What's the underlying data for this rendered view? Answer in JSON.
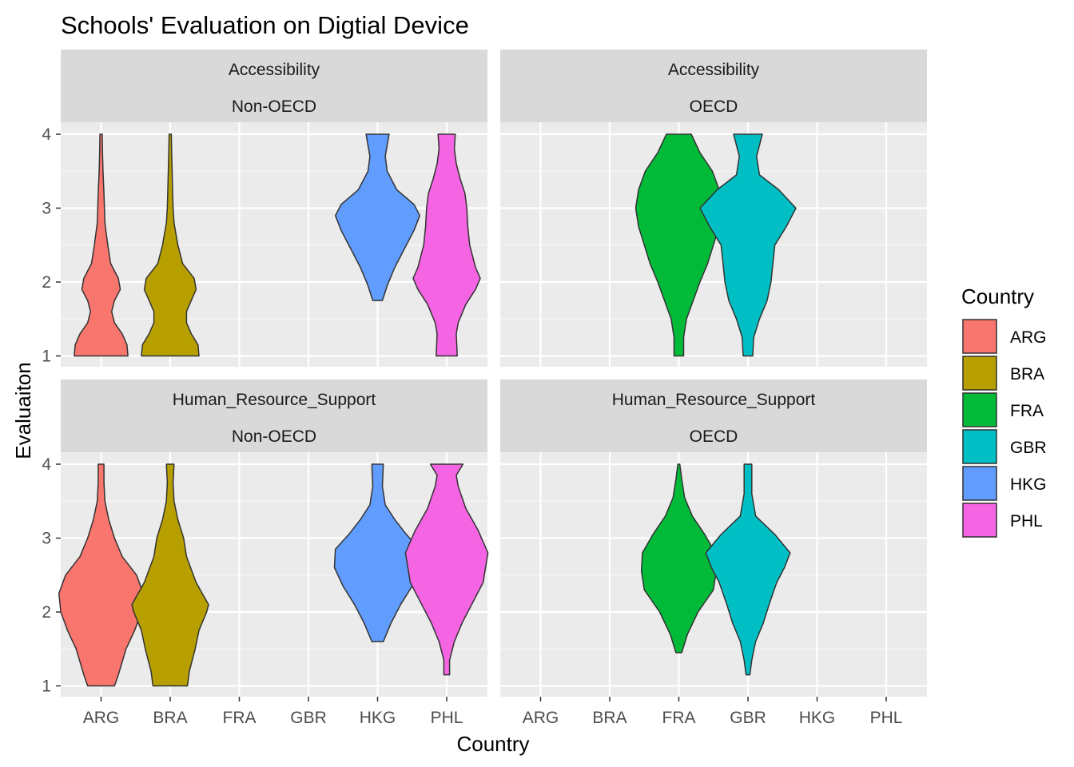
{
  "chart_data": {
    "type": "violin",
    "title": "Schools' Evaluation on Digtial Device",
    "xlabel": "Country",
    "ylabel": "Evaluaiton",
    "categories": [
      "ARG",
      "BRA",
      "FRA",
      "GBR",
      "HKG",
      "PHL"
    ],
    "y_ticks": [
      1,
      2,
      3,
      4
    ],
    "ylim": [
      0.75,
      4.25
    ],
    "grid": true,
    "facet_rows": [
      "Accessibility",
      "Human_Resource_Support"
    ],
    "facet_cols": [
      "Non-OECD",
      "OECD"
    ],
    "legend": {
      "title": "Country",
      "position": "right",
      "entries": [
        {
          "label": "ARG",
          "color": "#F8766D"
        },
        {
          "label": "BRA",
          "color": "#B79F00"
        },
        {
          "label": "FRA",
          "color": "#00BA38"
        },
        {
          "label": "GBR",
          "color": "#00BFC4"
        },
        {
          "label": "HKG",
          "color": "#619CFF"
        },
        {
          "label": "PHL",
          "color": "#F564E3"
        }
      ]
    },
    "panels": [
      {
        "row": "Accessibility",
        "col": "Non-OECD",
        "violins": [
          {
            "country": "ARG",
            "fill": "#F8766D",
            "profile": [
              [
                1.0,
                0.28
              ],
              [
                1.15,
                0.27
              ],
              [
                1.3,
                0.22
              ],
              [
                1.45,
                0.14
              ],
              [
                1.6,
                0.11
              ],
              [
                1.75,
                0.14
              ],
              [
                1.9,
                0.2
              ],
              [
                2.05,
                0.18
              ],
              [
                2.25,
                0.1
              ],
              [
                2.5,
                0.07
              ],
              [
                2.8,
                0.04
              ],
              [
                3.0,
                0.035
              ],
              [
                3.2,
                0.03
              ],
              [
                3.5,
                0.02
              ],
              [
                3.75,
                0.015
              ],
              [
                4.0,
                0.012
              ]
            ]
          },
          {
            "country": "BRA",
            "fill": "#B79F00",
            "profile": [
              [
                1.0,
                0.3
              ],
              [
                1.15,
                0.29
              ],
              [
                1.3,
                0.22
              ],
              [
                1.45,
                0.17
              ],
              [
                1.6,
                0.17
              ],
              [
                1.75,
                0.22
              ],
              [
                1.9,
                0.27
              ],
              [
                2.05,
                0.25
              ],
              [
                2.25,
                0.13
              ],
              [
                2.5,
                0.08
              ],
              [
                2.8,
                0.04
              ],
              [
                3.0,
                0.03
              ],
              [
                3.25,
                0.025
              ],
              [
                3.5,
                0.02
              ],
              [
                3.75,
                0.015
              ],
              [
                4.0,
                0.012
              ]
            ]
          },
          {
            "country": "HKG",
            "fill": "#619CFF",
            "profile": [
              [
                1.75,
                0.05
              ],
              [
                1.95,
                0.1
              ],
              [
                2.2,
                0.18
              ],
              [
                2.45,
                0.28
              ],
              [
                2.7,
                0.38
              ],
              [
                2.9,
                0.44
              ],
              [
                3.05,
                0.38
              ],
              [
                3.25,
                0.2
              ],
              [
                3.5,
                0.1
              ],
              [
                3.7,
                0.08
              ],
              [
                3.85,
                0.1
              ],
              [
                4.0,
                0.12
              ]
            ]
          },
          {
            "country": "PHL",
            "fill": "#F564E3",
            "profile": [
              [
                1.0,
                0.11
              ],
              [
                1.3,
                0.1
              ],
              [
                1.45,
                0.12
              ],
              [
                1.7,
                0.2
              ],
              [
                1.9,
                0.3
              ],
              [
                2.05,
                0.35
              ],
              [
                2.2,
                0.3
              ],
              [
                2.5,
                0.24
              ],
              [
                2.75,
                0.22
              ],
              [
                3.0,
                0.21
              ],
              [
                3.2,
                0.19
              ],
              [
                3.4,
                0.14
              ],
              [
                3.6,
                0.1
              ],
              [
                3.8,
                0.08
              ],
              [
                4.0,
                0.09
              ]
            ]
          }
        ]
      },
      {
        "row": "Accessibility",
        "col": "OECD",
        "violins": [
          {
            "country": "FRA",
            "fill": "#00BA38",
            "profile": [
              [
                1.0,
                0.05
              ],
              [
                1.25,
                0.05
              ],
              [
                1.5,
                0.08
              ],
              [
                1.75,
                0.15
              ],
              [
                2.0,
                0.22
              ],
              [
                2.25,
                0.3
              ],
              [
                2.5,
                0.36
              ],
              [
                2.75,
                0.42
              ],
              [
                3.0,
                0.45
              ],
              [
                3.25,
                0.42
              ],
              [
                3.5,
                0.35
              ],
              [
                3.75,
                0.22
              ],
              [
                4.0,
                0.13
              ]
            ]
          },
          {
            "country": "GBR",
            "fill": "#00BFC4",
            "profile": [
              [
                1.0,
                0.05
              ],
              [
                1.25,
                0.06
              ],
              [
                1.5,
                0.12
              ],
              [
                1.75,
                0.2
              ],
              [
                2.0,
                0.24
              ],
              [
                2.25,
                0.26
              ],
              [
                2.5,
                0.28
              ],
              [
                2.75,
                0.4
              ],
              [
                3.0,
                0.5
              ],
              [
                3.25,
                0.32
              ],
              [
                3.45,
                0.12
              ],
              [
                3.7,
                0.09
              ],
              [
                4.0,
                0.15
              ]
            ]
          }
        ]
      },
      {
        "row": "Human_Resource_Support",
        "col": "Non-OECD",
        "violins": [
          {
            "country": "ARG",
            "fill": "#F8766D",
            "profile": [
              [
                1.0,
                0.14
              ],
              [
                1.15,
                0.18
              ],
              [
                1.5,
                0.26
              ],
              [
                1.75,
                0.35
              ],
              [
                2.0,
                0.42
              ],
              [
                2.25,
                0.44
              ],
              [
                2.5,
                0.37
              ],
              [
                2.75,
                0.22
              ],
              [
                3.0,
                0.14
              ],
              [
                3.25,
                0.08
              ],
              [
                3.5,
                0.04
              ],
              [
                3.75,
                0.03
              ],
              [
                4.0,
                0.03
              ]
            ]
          },
          {
            "country": "BRA",
            "fill": "#B79F00",
            "profile": [
              [
                1.0,
                0.18
              ],
              [
                1.2,
                0.2
              ],
              [
                1.5,
                0.26
              ],
              [
                1.75,
                0.3
              ],
              [
                2.0,
                0.38
              ],
              [
                2.1,
                0.4
              ],
              [
                2.4,
                0.27
              ],
              [
                2.75,
                0.17
              ],
              [
                3.0,
                0.14
              ],
              [
                3.25,
                0.08
              ],
              [
                3.5,
                0.04
              ],
              [
                3.75,
                0.03
              ],
              [
                4.0,
                0.04
              ]
            ]
          },
          {
            "country": "HKG",
            "fill": "#619CFF",
            "profile": [
              [
                1.6,
                0.06
              ],
              [
                1.85,
                0.14
              ],
              [
                2.1,
                0.24
              ],
              [
                2.35,
                0.36
              ],
              [
                2.6,
                0.45
              ],
              [
                2.85,
                0.44
              ],
              [
                3.05,
                0.3
              ],
              [
                3.25,
                0.18
              ],
              [
                3.45,
                0.08
              ],
              [
                3.7,
                0.05
              ],
              [
                4.0,
                0.06
              ]
            ]
          },
          {
            "country": "PHL",
            "fill": "#F564E3",
            "profile": [
              [
                1.15,
                0.03
              ],
              [
                1.35,
                0.03
              ],
              [
                1.6,
                0.08
              ],
              [
                1.85,
                0.16
              ],
              [
                2.1,
                0.26
              ],
              [
                2.4,
                0.38
              ],
              [
                2.8,
                0.43
              ],
              [
                3.1,
                0.33
              ],
              [
                3.4,
                0.2
              ],
              [
                3.7,
                0.12
              ],
              [
                3.85,
                0.1
              ],
              [
                4.0,
                0.17
              ]
            ]
          }
        ]
      },
      {
        "row": "Human_Resource_Support",
        "col": "OECD",
        "violins": [
          {
            "country": "FRA",
            "fill": "#00BA38",
            "profile": [
              [
                1.45,
                0.03
              ],
              [
                1.7,
                0.09
              ],
              [
                2.0,
                0.2
              ],
              [
                2.3,
                0.36
              ],
              [
                2.55,
                0.39
              ],
              [
                2.8,
                0.38
              ],
              [
                3.05,
                0.27
              ],
              [
                3.3,
                0.14
              ],
              [
                3.55,
                0.06
              ],
              [
                3.8,
                0.03
              ],
              [
                4.0,
                0.01
              ]
            ]
          },
          {
            "country": "GBR",
            "fill": "#00BFC4",
            "profile": [
              [
                1.15,
                0.02
              ],
              [
                1.35,
                0.04
              ],
              [
                1.6,
                0.08
              ],
              [
                1.85,
                0.16
              ],
              [
                2.1,
                0.22
              ],
              [
                2.4,
                0.3
              ],
              [
                2.6,
                0.38
              ],
              [
                2.8,
                0.44
              ],
              [
                3.05,
                0.28
              ],
              [
                3.3,
                0.08
              ],
              [
                3.6,
                0.04
              ],
              [
                4.0,
                0.04
              ]
            ]
          }
        ]
      }
    ]
  }
}
